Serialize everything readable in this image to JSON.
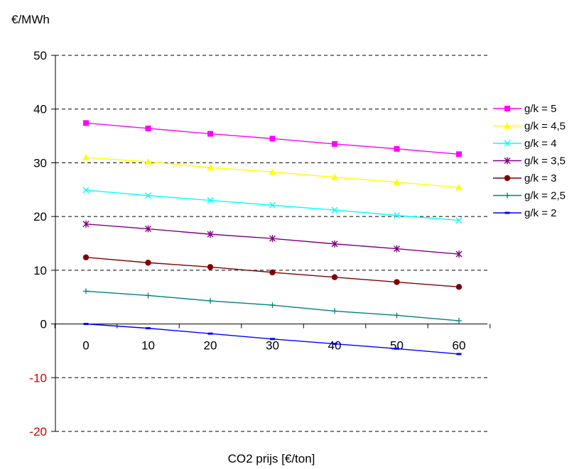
{
  "chart_data": {
    "type": "line",
    "title": "",
    "ylabel": "€/MWh",
    "xlabel": "CO2 prijs [€/ton]",
    "x": [
      0,
      10,
      20,
      30,
      40,
      50,
      60
    ],
    "ylim": [
      -20,
      50
    ],
    "y_ticks": [
      -20,
      -10,
      0,
      10,
      20,
      30,
      40,
      50
    ],
    "grid": true,
    "legend_position": "right",
    "negative_tick_color": "#cc0000",
    "series": [
      {
        "name": "g/k = 5",
        "color": "#ff00ff",
        "marker": "square",
        "values": [
          37.4,
          36.4,
          35.4,
          34.5,
          33.5,
          32.6,
          31.6
        ]
      },
      {
        "name": "g/k = 4,5",
        "color": "#ffff00",
        "marker": "triangle",
        "values": [
          31.0,
          30.2,
          29.1,
          28.3,
          27.3,
          26.4,
          25.4
        ]
      },
      {
        "name": "g/k = 4",
        "color": "#00ffff",
        "marker": "x",
        "values": [
          24.9,
          23.9,
          23.0,
          22.1,
          21.2,
          20.2,
          19.3
        ]
      },
      {
        "name": "g/k = 3,5",
        "color": "#800080",
        "marker": "star",
        "values": [
          18.6,
          17.7,
          16.7,
          15.9,
          14.9,
          14.0,
          13.0
        ]
      },
      {
        "name": "g/k = 3",
        "color": "#800000",
        "marker": "circle",
        "values": [
          12.4,
          11.4,
          10.6,
          9.6,
          8.7,
          7.8,
          6.9
        ]
      },
      {
        "name": "g/k = 2,5",
        "color": "#008080",
        "marker": "plus",
        "values": [
          6.1,
          5.3,
          4.3,
          3.5,
          2.4,
          1.6,
          0.6
        ]
      },
      {
        "name": "g/k = 2",
        "color": "#0000ff",
        "marker": "dash",
        "values": [
          0.0,
          -0.8,
          -1.8,
          -2.8,
          -3.7,
          -4.6,
          -5.6
        ]
      }
    ]
  }
}
